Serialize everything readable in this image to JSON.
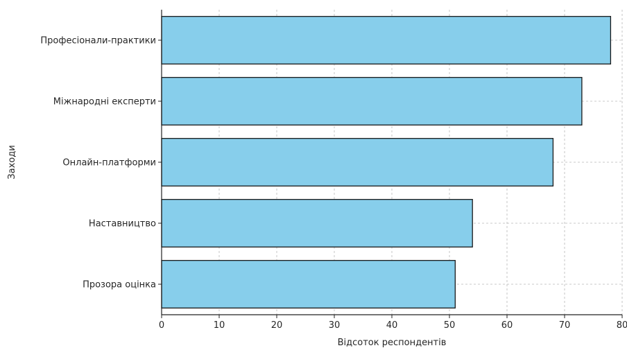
{
  "chart_data": {
    "type": "bar",
    "orientation": "horizontal",
    "categories": [
      "Професіонали-практики",
      "Міжнародні експерти",
      "Онлайн-платформи",
      "Наставництво",
      "Прозора оцінка"
    ],
    "values": [
      78,
      73,
      68,
      54,
      51
    ],
    "xlabel": "Відсоток респондентів",
    "ylabel": "Заходи",
    "xlim": [
      0,
      80
    ],
    "xticks": [
      "0",
      "10",
      "20",
      "30",
      "40",
      "50",
      "60",
      "70",
      "80"
    ],
    "grid": true,
    "bar_color": "#87ceeb",
    "bar_edge_color": "#1a1a1a"
  }
}
